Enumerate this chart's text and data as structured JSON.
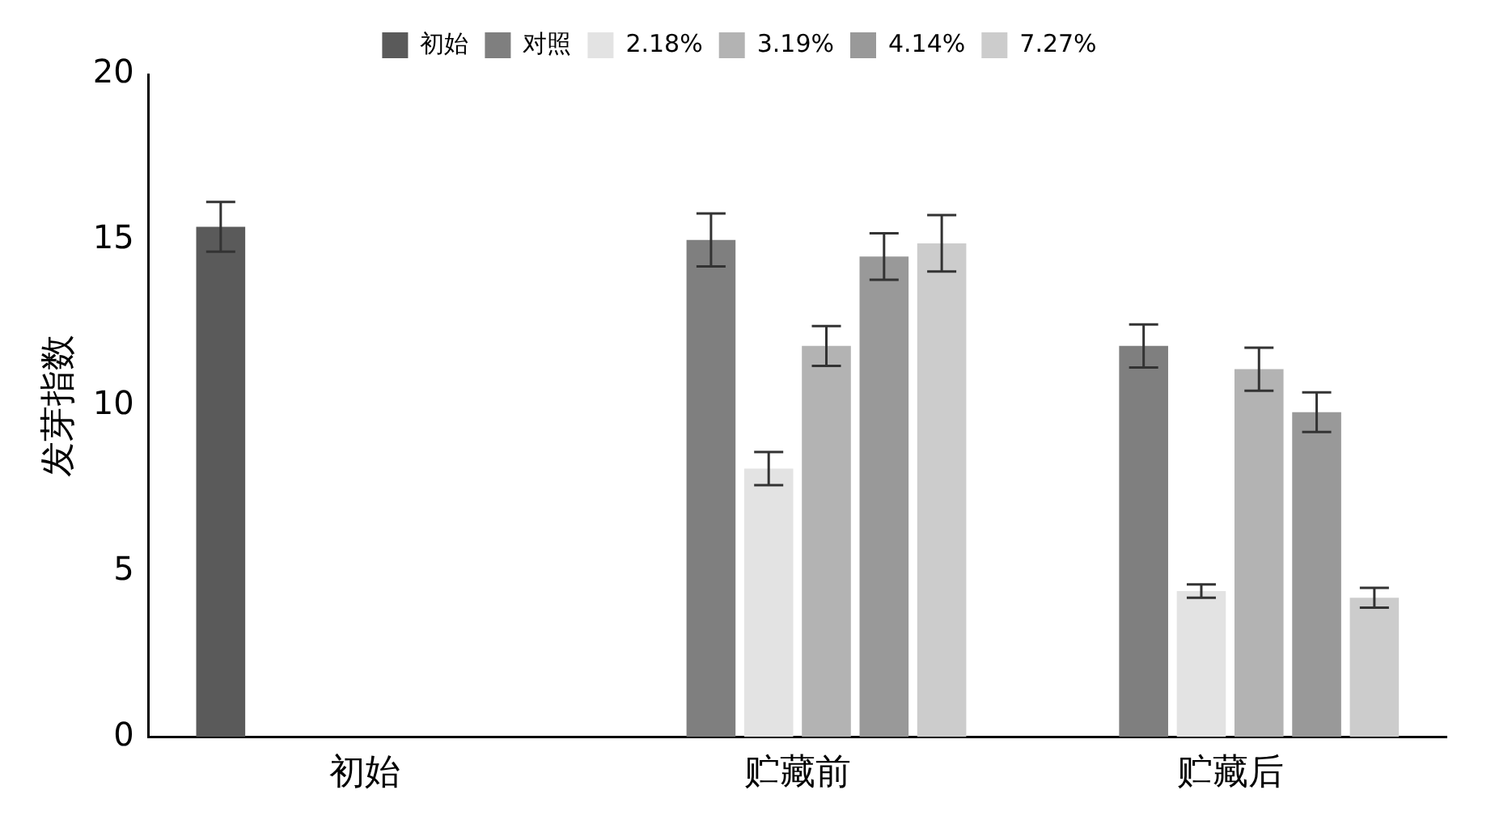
{
  "chart_data": {
    "type": "bar",
    "ylabel": "发芽指数",
    "categories": [
      "初始",
      "贮藏前",
      "贮藏后"
    ],
    "series": [
      {
        "name": "初始",
        "color": "#5a5a5a",
        "values": [
          15.4,
          null,
          null
        ],
        "errors": [
          0.75,
          null,
          null
        ]
      },
      {
        "name": "对照",
        "color": "#7f7f7f",
        "values": [
          null,
          15.0,
          11.8
        ],
        "errors": [
          null,
          0.8,
          0.65
        ]
      },
      {
        "name": "2.18%",
        "color": "#e3e3e3",
        "values": [
          null,
          8.1,
          4.4
        ],
        "errors": [
          null,
          0.5,
          0.2
        ]
      },
      {
        "name": "3.19%",
        "color": "#b3b3b3",
        "values": [
          null,
          11.8,
          11.1
        ],
        "errors": [
          null,
          0.6,
          0.65
        ]
      },
      {
        "name": "4.14%",
        "color": "#999999",
        "values": [
          null,
          14.5,
          9.8
        ],
        "errors": [
          null,
          0.7,
          0.6
        ]
      },
      {
        "name": "7.27%",
        "color": "#cccccc",
        "values": [
          null,
          14.9,
          4.2
        ],
        "errors": [
          null,
          0.85,
          0.3
        ]
      }
    ],
    "ylim": [
      0,
      20
    ],
    "yticks": [
      0,
      5,
      10,
      15,
      20
    ],
    "grid": false,
    "legend": "top"
  }
}
